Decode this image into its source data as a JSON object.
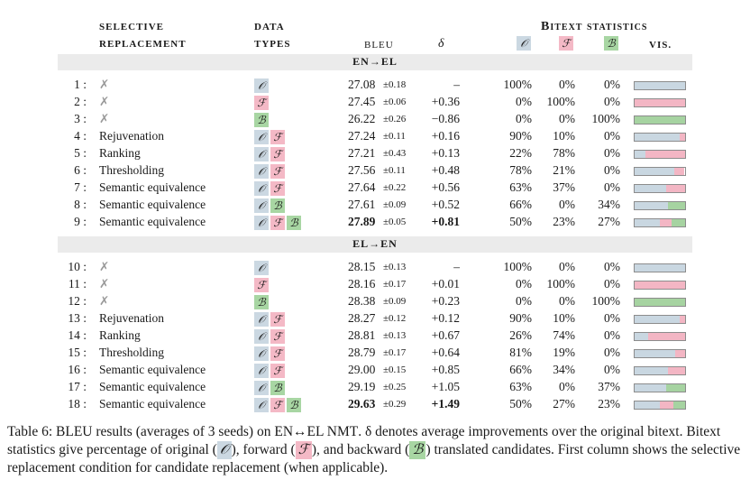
{
  "headers": {
    "sel_line1": "SELECTIVE",
    "sel_line2": "REPLACEMENT",
    "data_line1": "DATA",
    "data_line2": "TYPES",
    "bleu": "BLEU",
    "delta": "δ",
    "bitext": "Bitext statistics",
    "o_sym": "𝒪",
    "f_sym": "ℱ",
    "b_sym": "ℬ",
    "vis": "VIS."
  },
  "sections": [
    {
      "title": "EN→EL",
      "rows": [
        {
          "idx": "1 :",
          "sel": "✗",
          "types": [
            "O"
          ],
          "bleu": "27.08",
          "pm": "±0.18",
          "delta": "–",
          "o": "100%",
          "f": "0%",
          "b": "0%",
          "vis": [
            100,
            0,
            0
          ],
          "bold": false
        },
        {
          "idx": "2 :",
          "sel": "✗",
          "types": [
            "F"
          ],
          "bleu": "27.45",
          "pm": "±0.06",
          "delta": "+0.36",
          "o": "0%",
          "f": "100%",
          "b": "0%",
          "vis": [
            0,
            100,
            0
          ],
          "bold": false
        },
        {
          "idx": "3 :",
          "sel": "✗",
          "types": [
            "B"
          ],
          "bleu": "26.22",
          "pm": "±0.26",
          "delta": "−0.86",
          "o": "0%",
          "f": "0%",
          "b": "100%",
          "vis": [
            0,
            0,
            100
          ],
          "bold": false
        },
        {
          "idx": "4 :",
          "sel": "Rejuvenation",
          "types": [
            "O",
            "F"
          ],
          "bleu": "27.24",
          "pm": "±0.11",
          "delta": "+0.16",
          "o": "90%",
          "f": "10%",
          "b": "0%",
          "vis": [
            90,
            10,
            0
          ],
          "bold": false
        },
        {
          "idx": "5 :",
          "sel": "Ranking",
          "types": [
            "O",
            "F"
          ],
          "bleu": "27.21",
          "pm": "±0.43",
          "delta": "+0.13",
          "o": "22%",
          "f": "78%",
          "b": "0%",
          "vis": [
            22,
            78,
            0
          ],
          "bold": false
        },
        {
          "idx": "6 :",
          "sel": "Thresholding",
          "types": [
            "O",
            "F"
          ],
          "bleu": "27.56",
          "pm": "±0.11",
          "delta": "+0.48",
          "o": "78%",
          "f": "21%",
          "b": "0%",
          "vis": [
            78,
            21,
            0
          ],
          "bold": false
        },
        {
          "idx": "7 :",
          "sel": "Semantic equivalence",
          "types": [
            "O",
            "F"
          ],
          "bleu": "27.64",
          "pm": "±0.22",
          "delta": "+0.56",
          "o": "63%",
          "f": "37%",
          "b": "0%",
          "vis": [
            63,
            37,
            0
          ],
          "bold": false
        },
        {
          "idx": "8 :",
          "sel": "Semantic equivalence",
          "types": [
            "O",
            "B"
          ],
          "bleu": "27.61",
          "pm": "±0.09",
          "delta": "+0.52",
          "o": "66%",
          "f": "0%",
          "b": "34%",
          "vis": [
            66,
            0,
            34
          ],
          "bold": false
        },
        {
          "idx": "9 :",
          "sel": "Semantic equivalence",
          "types": [
            "O",
            "F",
            "B"
          ],
          "bleu": "27.89",
          "pm": "±0.05",
          "delta": "+0.81",
          "o": "50%",
          "f": "23%",
          "b": "27%",
          "vis": [
            50,
            23,
            27
          ],
          "bold": true
        }
      ]
    },
    {
      "title": "EL→EN",
      "rows": [
        {
          "idx": "10 :",
          "sel": "✗",
          "types": [
            "O"
          ],
          "bleu": "28.15",
          "pm": "±0.13",
          "delta": "–",
          "o": "100%",
          "f": "0%",
          "b": "0%",
          "vis": [
            100,
            0,
            0
          ],
          "bold": false
        },
        {
          "idx": "11 :",
          "sel": "✗",
          "types": [
            "F"
          ],
          "bleu": "28.16",
          "pm": "±0.17",
          "delta": "+0.01",
          "o": "0%",
          "f": "100%",
          "b": "0%",
          "vis": [
            0,
            100,
            0
          ],
          "bold": false
        },
        {
          "idx": "12 :",
          "sel": "✗",
          "types": [
            "B"
          ],
          "bleu": "28.38",
          "pm": "±0.09",
          "delta": "+0.23",
          "o": "0%",
          "f": "0%",
          "b": "100%",
          "vis": [
            0,
            0,
            100
          ],
          "bold": false
        },
        {
          "idx": "13 :",
          "sel": "Rejuvenation",
          "types": [
            "O",
            "F"
          ],
          "bleu": "28.27",
          "pm": "±0.12",
          "delta": "+0.12",
          "o": "90%",
          "f": "10%",
          "b": "0%",
          "vis": [
            90,
            10,
            0
          ],
          "bold": false
        },
        {
          "idx": "14 :",
          "sel": "Ranking",
          "types": [
            "O",
            "F"
          ],
          "bleu": "28.81",
          "pm": "±0.13",
          "delta": "+0.67",
          "o": "26%",
          "f": "74%",
          "b": "0%",
          "vis": [
            26,
            74,
            0
          ],
          "bold": false
        },
        {
          "idx": "15 :",
          "sel": "Thresholding",
          "types": [
            "O",
            "F"
          ],
          "bleu": "28.79",
          "pm": "±0.17",
          "delta": "+0.64",
          "o": "81%",
          "f": "19%",
          "b": "0%",
          "vis": [
            81,
            19,
            0
          ],
          "bold": false
        },
        {
          "idx": "16 :",
          "sel": "Semantic equivalence",
          "types": [
            "O",
            "F"
          ],
          "bleu": "29.00",
          "pm": "±0.15",
          "delta": "+0.85",
          "o": "66%",
          "f": "34%",
          "b": "0%",
          "vis": [
            66,
            34,
            0
          ],
          "bold": false
        },
        {
          "idx": "17 :",
          "sel": "Semantic equivalence",
          "types": [
            "O",
            "B"
          ],
          "bleu": "29.19",
          "pm": "±0.25",
          "delta": "+1.05",
          "o": "63%",
          "f": "0%",
          "b": "37%",
          "vis": [
            63,
            0,
            37
          ],
          "bold": false
        },
        {
          "idx": "18 :",
          "sel": "Semantic equivalence",
          "types": [
            "O",
            "F",
            "B"
          ],
          "bleu": "29.63",
          "pm": "±0.29",
          "delta": "+1.49",
          "o": "50%",
          "f": "27%",
          "b": "23%",
          "vis": [
            50,
            27,
            23
          ],
          "bold": true
        }
      ]
    }
  ],
  "caption": {
    "part1": "Table 6: ",
    "part2": "BLEU",
    "part3": " results (averages of 3 seeds) on ",
    "part4": "EN↔EL NMT",
    "part5": ". δ denotes average improvements over the original bitext. Bitext statistics give percentage of original (",
    "o": "𝒪",
    "part6": "), forward (",
    "f": "ℱ",
    "part7": "), and backward (",
    "b": "ℬ",
    "part8": ") translated candidates. First column shows the selective replacement condition for candidate replacement (when applicable)."
  },
  "colors": {
    "original": "#c9d7e1",
    "forward": "#f3b6c4",
    "backward": "#a6d3a1"
  }
}
